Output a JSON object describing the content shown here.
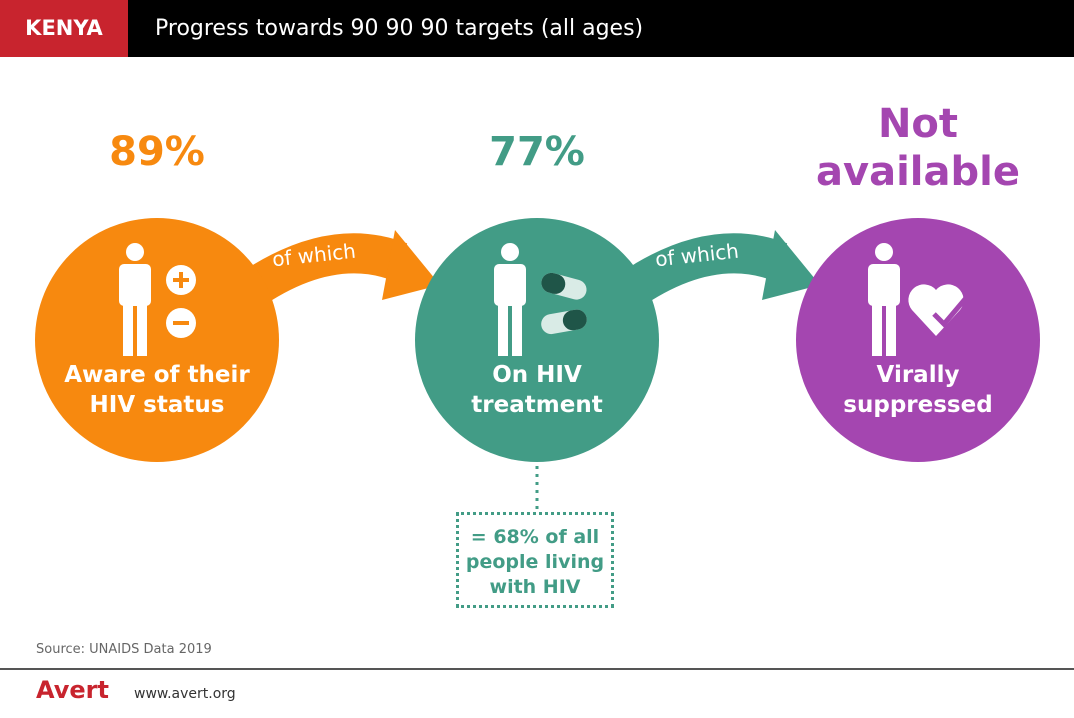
{
  "header": {
    "country": "KENYA",
    "title": "Progress towards 90 90 90 targets (all ages)"
  },
  "stages": [
    {
      "value": "89%",
      "label_line1": "Aware of their",
      "label_line2": "HIV status",
      "color": "#f7890f",
      "icon": "person-plus-minus-icon"
    },
    {
      "value": "77%",
      "label_line1": "On HIV",
      "label_line2": "treatment",
      "color": "#429c86",
      "icon": "person-pills-icon"
    },
    {
      "value_line1": "Not",
      "value_line2": "available",
      "label_line1": "Virally",
      "label_line2": "suppressed",
      "color": "#a446b0",
      "icon": "person-heart-check-icon"
    }
  ],
  "connectors": [
    "of which",
    "of which"
  ],
  "note": {
    "line1": "= 68% of all",
    "line2": "people living",
    "line3": "with HIV"
  },
  "source": "Source: UNAIDS Data 2019",
  "footer": {
    "logo": "Avert",
    "url": "www.avert.org"
  }
}
